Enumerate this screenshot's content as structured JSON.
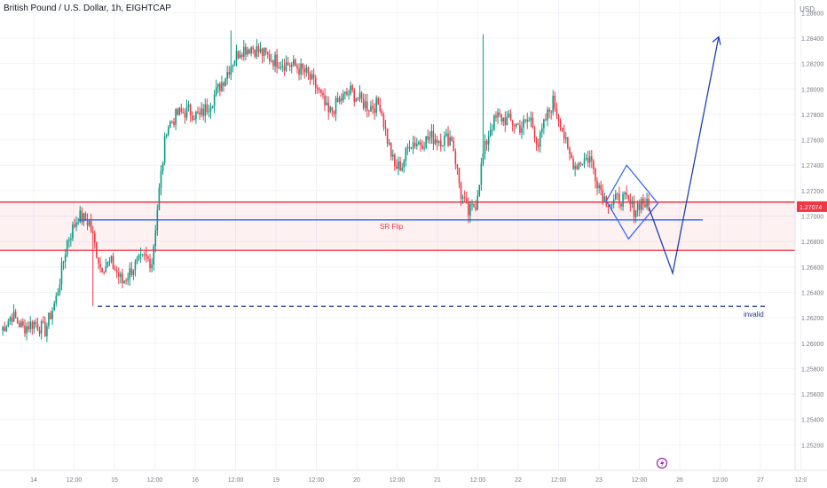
{
  "header": {
    "title": "British Pound / U.S. Dollar, 1h, EIGHTCAP",
    "currency": "USD"
  },
  "chart_data": {
    "type": "candlestick",
    "ylim": [
      1.25,
      1.287
    ],
    "y_ticks": [
      {
        "value": 1.286,
        "label": "1.28600"
      },
      {
        "value": 1.284,
        "label": "1.28400"
      },
      {
        "value": 1.282,
        "label": "1.28200"
      },
      {
        "value": 1.28,
        "label": "1.28000"
      },
      {
        "value": 1.278,
        "label": "1.27800"
      },
      {
        "value": 1.276,
        "label": "1.27600"
      },
      {
        "value": 1.274,
        "label": "1.27400"
      },
      {
        "value": 1.272,
        "label": "1.27200"
      },
      {
        "value": 1.27,
        "label": "1.27000"
      },
      {
        "value": 1.268,
        "label": "1.26800"
      },
      {
        "value": 1.266,
        "label": "1.26600"
      },
      {
        "value": 1.264,
        "label": "1.26400"
      },
      {
        "value": 1.262,
        "label": "1.26200"
      },
      {
        "value": 1.26,
        "label": "1.26000"
      },
      {
        "value": 1.258,
        "label": "1.25800"
      },
      {
        "value": 1.256,
        "label": "1.25600"
      },
      {
        "value": 1.254,
        "label": "1.25400"
      },
      {
        "value": 1.252,
        "label": "1.25200"
      }
    ],
    "x_ticks": [
      "14",
      "12:00",
      "15",
      "12:00",
      "16",
      "12:00",
      "19",
      "12:00",
      "20",
      "12:00",
      "21",
      "12:00",
      "22",
      "12:00",
      "23",
      "12:00",
      "26",
      "12:00",
      "27",
      "12:0"
    ],
    "last_price": {
      "value": 1.27074,
      "label": "1.27074"
    },
    "colors": {
      "up": "#089981",
      "down": "#f23645",
      "zone": "#f23645",
      "drawing": "#2962ff",
      "grid": "#f0f3fa"
    },
    "grid": true,
    "supply_zone": {
      "y_top": 1.2711,
      "y_bottom": 1.2673
    },
    "sr_flip": {
      "y": 1.2697,
      "label": "SR Flip"
    },
    "invalid_line": {
      "y": 1.2629,
      "label": "invalid"
    },
    "series_anchors": [
      [
        0,
        1.261
      ],
      [
        6,
        1.2622
      ],
      [
        12,
        1.2612
      ],
      [
        18,
        1.2616
      ],
      [
        24,
        1.261
      ],
      [
        30,
        1.2635
      ],
      [
        36,
        1.268
      ],
      [
        42,
        1.27
      ],
      [
        48,
        1.2695
      ],
      [
        54,
        1.266
      ],
      [
        60,
        1.2663
      ],
      [
        66,
        1.2648
      ],
      [
        72,
        1.266
      ],
      [
        78,
        1.2667
      ],
      [
        82,
        1.2664
      ],
      [
        86,
        1.272
      ],
      [
        90,
        1.277
      ],
      [
        96,
        1.278
      ],
      [
        102,
        1.2783
      ],
      [
        108,
        1.2778
      ],
      [
        114,
        1.279
      ],
      [
        120,
        1.2805
      ],
      [
        126,
        1.2822
      ],
      [
        130,
        1.2831
      ],
      [
        136,
        1.2833
      ],
      [
        142,
        1.2828
      ],
      [
        148,
        1.2823
      ],
      [
        154,
        1.282
      ],
      [
        160,
        1.2818
      ],
      [
        166,
        1.2812
      ],
      [
        172,
        1.28
      ],
      [
        178,
        1.278
      ],
      [
        184,
        1.2791
      ],
      [
        190,
        1.2798
      ],
      [
        196,
        1.279
      ],
      [
        200,
        1.2786
      ],
      [
        206,
        1.2788
      ],
      [
        210,
        1.276
      ],
      [
        214,
        1.2738
      ],
      [
        218,
        1.274
      ],
      [
        222,
        1.2758
      ],
      [
        228,
        1.2758
      ],
      [
        234,
        1.2762
      ],
      [
        240,
        1.276
      ],
      [
        245,
        1.2762
      ],
      [
        250,
        1.2717
      ],
      [
        254,
        1.2702
      ],
      [
        258,
        1.271
      ],
      [
        262,
        1.2748
      ],
      [
        266,
        1.277
      ],
      [
        270,
        1.2778
      ],
      [
        276,
        1.2775
      ],
      [
        282,
        1.277
      ],
      [
        288,
        1.2776
      ],
      [
        292,
        1.2756
      ],
      [
        296,
        1.2776
      ],
      [
        300,
        1.279
      ],
      [
        304,
        1.2775
      ],
      [
        308,
        1.275
      ],
      [
        312,
        1.274
      ],
      [
        316,
        1.2744
      ],
      [
        320,
        1.2746
      ],
      [
        324,
        1.2728
      ],
      [
        328,
        1.2714
      ],
      [
        332,
        1.271
      ],
      [
        336,
        1.2714
      ],
      [
        340,
        1.2712
      ],
      [
        344,
        1.2705
      ],
      [
        348,
        1.2712
      ],
      [
        352,
        1.2707
      ]
    ],
    "wicks": [
      [
        50,
        1.2629
      ],
      [
        262,
        1.2843
      ],
      [
        125,
        1.2846
      ]
    ],
    "projection": [
      [
        352,
        1.2707
      ],
      [
        365,
        1.2655
      ],
      [
        390,
        1.2841
      ]
    ],
    "diamond": {
      "left": [
        329,
        1.2712
      ],
      "top": [
        340,
        1.274
      ],
      "right": [
        357,
        1.271
      ],
      "bottom": [
        341,
        1.2682
      ]
    },
    "total_bars": 432
  }
}
